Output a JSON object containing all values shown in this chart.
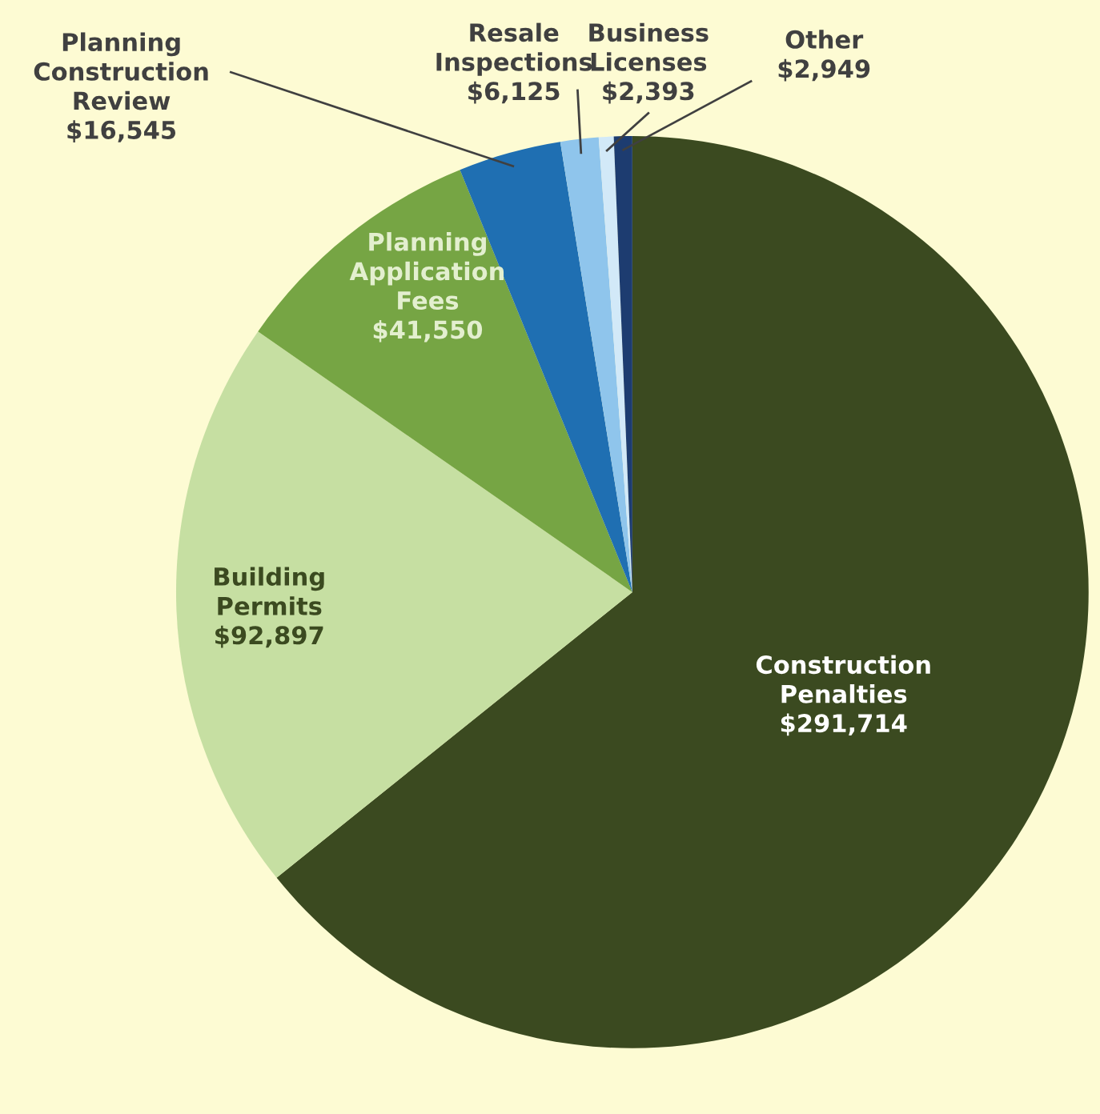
{
  "chart_data": {
    "type": "pie",
    "categories": [
      "Construction Penalties",
      "Building Permits",
      "Planning Application Fees",
      "Planning Construction Review",
      "Resale Inspections",
      "Business Licenses",
      "Other"
    ],
    "values": [
      291714,
      92897,
      41550,
      16545,
      6125,
      2393,
      2949
    ],
    "value_labels": [
      "$291,714",
      "$92,897",
      "$41,550",
      "$16,545",
      "$6,125",
      "$2,393",
      "$2,949"
    ],
    "colors": [
      "#3b4a20",
      "#c6dfa2",
      "#76a544",
      "#1f6fb2",
      "#8fc5ec",
      "#d2e9f8",
      "#1d3c70"
    ],
    "data_labels": true,
    "legend": false
  }
}
